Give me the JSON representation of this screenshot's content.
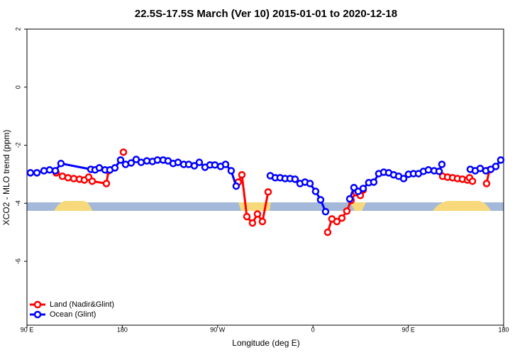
{
  "chart_data": {
    "type": "line",
    "title": "22.5S-17.5S March (Ver 10)   2015-01-01 to 2020-12-18",
    "x_label": "Longitude (deg E)",
    "y_label": "XCO2 - MLO trend (ppm)",
    "xlim": [
      90,
      540
    ],
    "ylim": [
      -8.2,
      2
    ],
    "xticks": [
      {
        "value": 90,
        "label": "90 E"
      },
      {
        "value": 180,
        "label": "180"
      },
      {
        "value": 270,
        "label": "90 W"
      },
      {
        "value": 360,
        "label": "0"
      },
      {
        "value": 450,
        "label": "90 E"
      },
      {
        "value": 540,
        "label": "180"
      }
    ],
    "yticks": [
      2,
      0,
      -2,
      -4,
      -6
    ],
    "legend": "bottomleft",
    "series": [
      {
        "name": "Land (Nadir&Glint)",
        "color": "#ff0000",
        "x": [
          117.5,
          123.5,
          128.8,
          134.2,
          139.6,
          144.2,
          148.3,
          151.6,
          165,
          167,
          null,
          181.1,
          null,
          289.5,
          292.9,
          297.6,
          302.9,
          307.6,
          312.3,
          317.7,
          null,
          373.9,
          377.9,
          382.6,
          387.3,
          392,
          396,
          400.7,
          404.7,
          407.4,
          null,
          479.1,
          482.4,
          487.1,
          491.8,
          496.4,
          501.1,
          505.8,
          507.8,
          510.6,
          null,
          523.9,
          526.6
        ],
        "values": [
          -2.95,
          -3.07,
          -3.12,
          -3.15,
          -3.17,
          -3.2,
          -3.1,
          -3.24,
          -3.32,
          -2.88,
          null,
          -2.24,
          null,
          -3.27,
          -3.02,
          -4.46,
          -4.68,
          -4.37,
          -4.63,
          -3.61,
          null,
          -5.0,
          -4.54,
          -4.63,
          -4.51,
          -4.27,
          -3.9,
          -3.63,
          -3.73,
          -3.54,
          null,
          -2.9,
          -3.07,
          -3.1,
          -3.12,
          -3.15,
          -3.17,
          -3.2,
          -3.12,
          -3.24,
          null,
          -3.32,
          -2.85
        ]
      },
      {
        "name": "Ocean (Glint)",
        "color": "#0000ff",
        "x": [
          93.3,
          99.4,
          106.1,
          111.4,
          116.8,
          122.1,
          150.3,
          154.3,
          158.3,
          163.7,
          168.3,
          173,
          178.4,
          183.1,
          188.4,
          193.1,
          197.8,
          203.2,
          208.5,
          213.2,
          218.6,
          223.2,
          228,
          232.6,
          238,
          242.7,
          248,
          252.7,
          258.1,
          262.8,
          267.4,
          272.8,
          277.5,
          282.8,
          287.5,
          null,
          319.7,
          324.4,
          329,
          333.7,
          338.4,
          343.1,
          347.8,
          352.5,
          357.2,
          362.5,
          367.2,
          371.9,
          null,
          394.7,
          398.7,
          402.7,
          407.4,
          412.7,
          417.4,
          422.1,
          426.8,
          431.5,
          436.2,
          440.9,
          445.6,
          450.2,
          454.9,
          459.6,
          464.3,
          469,
          474.4,
          479.1,
          481.7,
          null,
          508.5,
          513.2,
          517.9,
          523.2,
          527.9,
          532.6,
          537.3
        ],
        "values": [
          -2.95,
          -2.95,
          -2.88,
          -2.85,
          -2.88,
          -2.63,
          -2.83,
          -2.85,
          -2.78,
          -2.85,
          -2.85,
          -2.78,
          -2.51,
          -2.66,
          -2.61,
          -2.49,
          -2.59,
          -2.54,
          -2.56,
          -2.51,
          -2.51,
          -2.54,
          -2.63,
          -2.59,
          -2.66,
          -2.66,
          -2.71,
          -2.59,
          -2.76,
          -2.68,
          -2.68,
          -2.73,
          -2.66,
          -2.88,
          -3.41,
          null,
          -3.05,
          -3.12,
          -3.12,
          -3.15,
          -3.15,
          -3.17,
          -3.32,
          -3.27,
          -3.32,
          -3.59,
          -3.88,
          -4.29,
          null,
          -3.85,
          -3.46,
          -3.59,
          -3.49,
          -3.29,
          -3.27,
          -2.98,
          -2.93,
          -2.95,
          -3.02,
          -3.07,
          -3.15,
          -3.0,
          -2.98,
          -2.98,
          -2.9,
          -2.85,
          -2.88,
          -2.9,
          -2.66,
          null,
          -2.83,
          -2.88,
          -2.8,
          -2.88,
          -2.83,
          -2.73,
          -2.51
        ]
      }
    ]
  }
}
